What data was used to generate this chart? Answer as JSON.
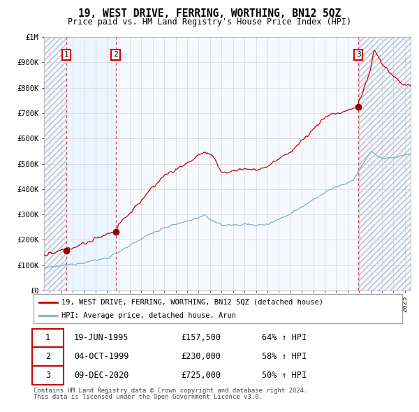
{
  "title": "19, WEST DRIVE, FERRING, WORTHING, BN12 5QZ",
  "subtitle": "Price paid vs. HM Land Registry's House Price Index (HPI)",
  "legend_line1": "19, WEST DRIVE, FERRING, WORTHING, BN12 5QZ (detached house)",
  "legend_line2": "HPI: Average price, detached house, Arun",
  "transactions": [
    {
      "num": 1,
      "date_str": "19-JUN-1995",
      "date_x": 1995.46,
      "price": 157500,
      "pct": "64%",
      "dir": "↑"
    },
    {
      "num": 2,
      "date_str": "04-OCT-1999",
      "date_x": 1999.75,
      "price": 230000,
      "pct": "58%",
      "dir": "↑"
    },
    {
      "num": 3,
      "date_str": "09-DEC-2020",
      "date_x": 2020.94,
      "price": 725000,
      "pct": "50%",
      "dir": "↑"
    }
  ],
  "footnote1": "Contains HM Land Registry data © Crown copyright and database right 2024.",
  "footnote2": "This data is licensed under the Open Government Licence v3.0.",
  "hpi_color": "#7bafd4",
  "price_color": "#cc0000",
  "dot_color": "#990000",
  "shading_color": "#ddeeff",
  "hatch_color": "#cccccc",
  "background_color": "#ffffff",
  "grid_color": "#cccccc",
  "ylim": [
    0,
    1000000
  ],
  "xlim_start": 1993.5,
  "xlim_end": 2025.5
}
